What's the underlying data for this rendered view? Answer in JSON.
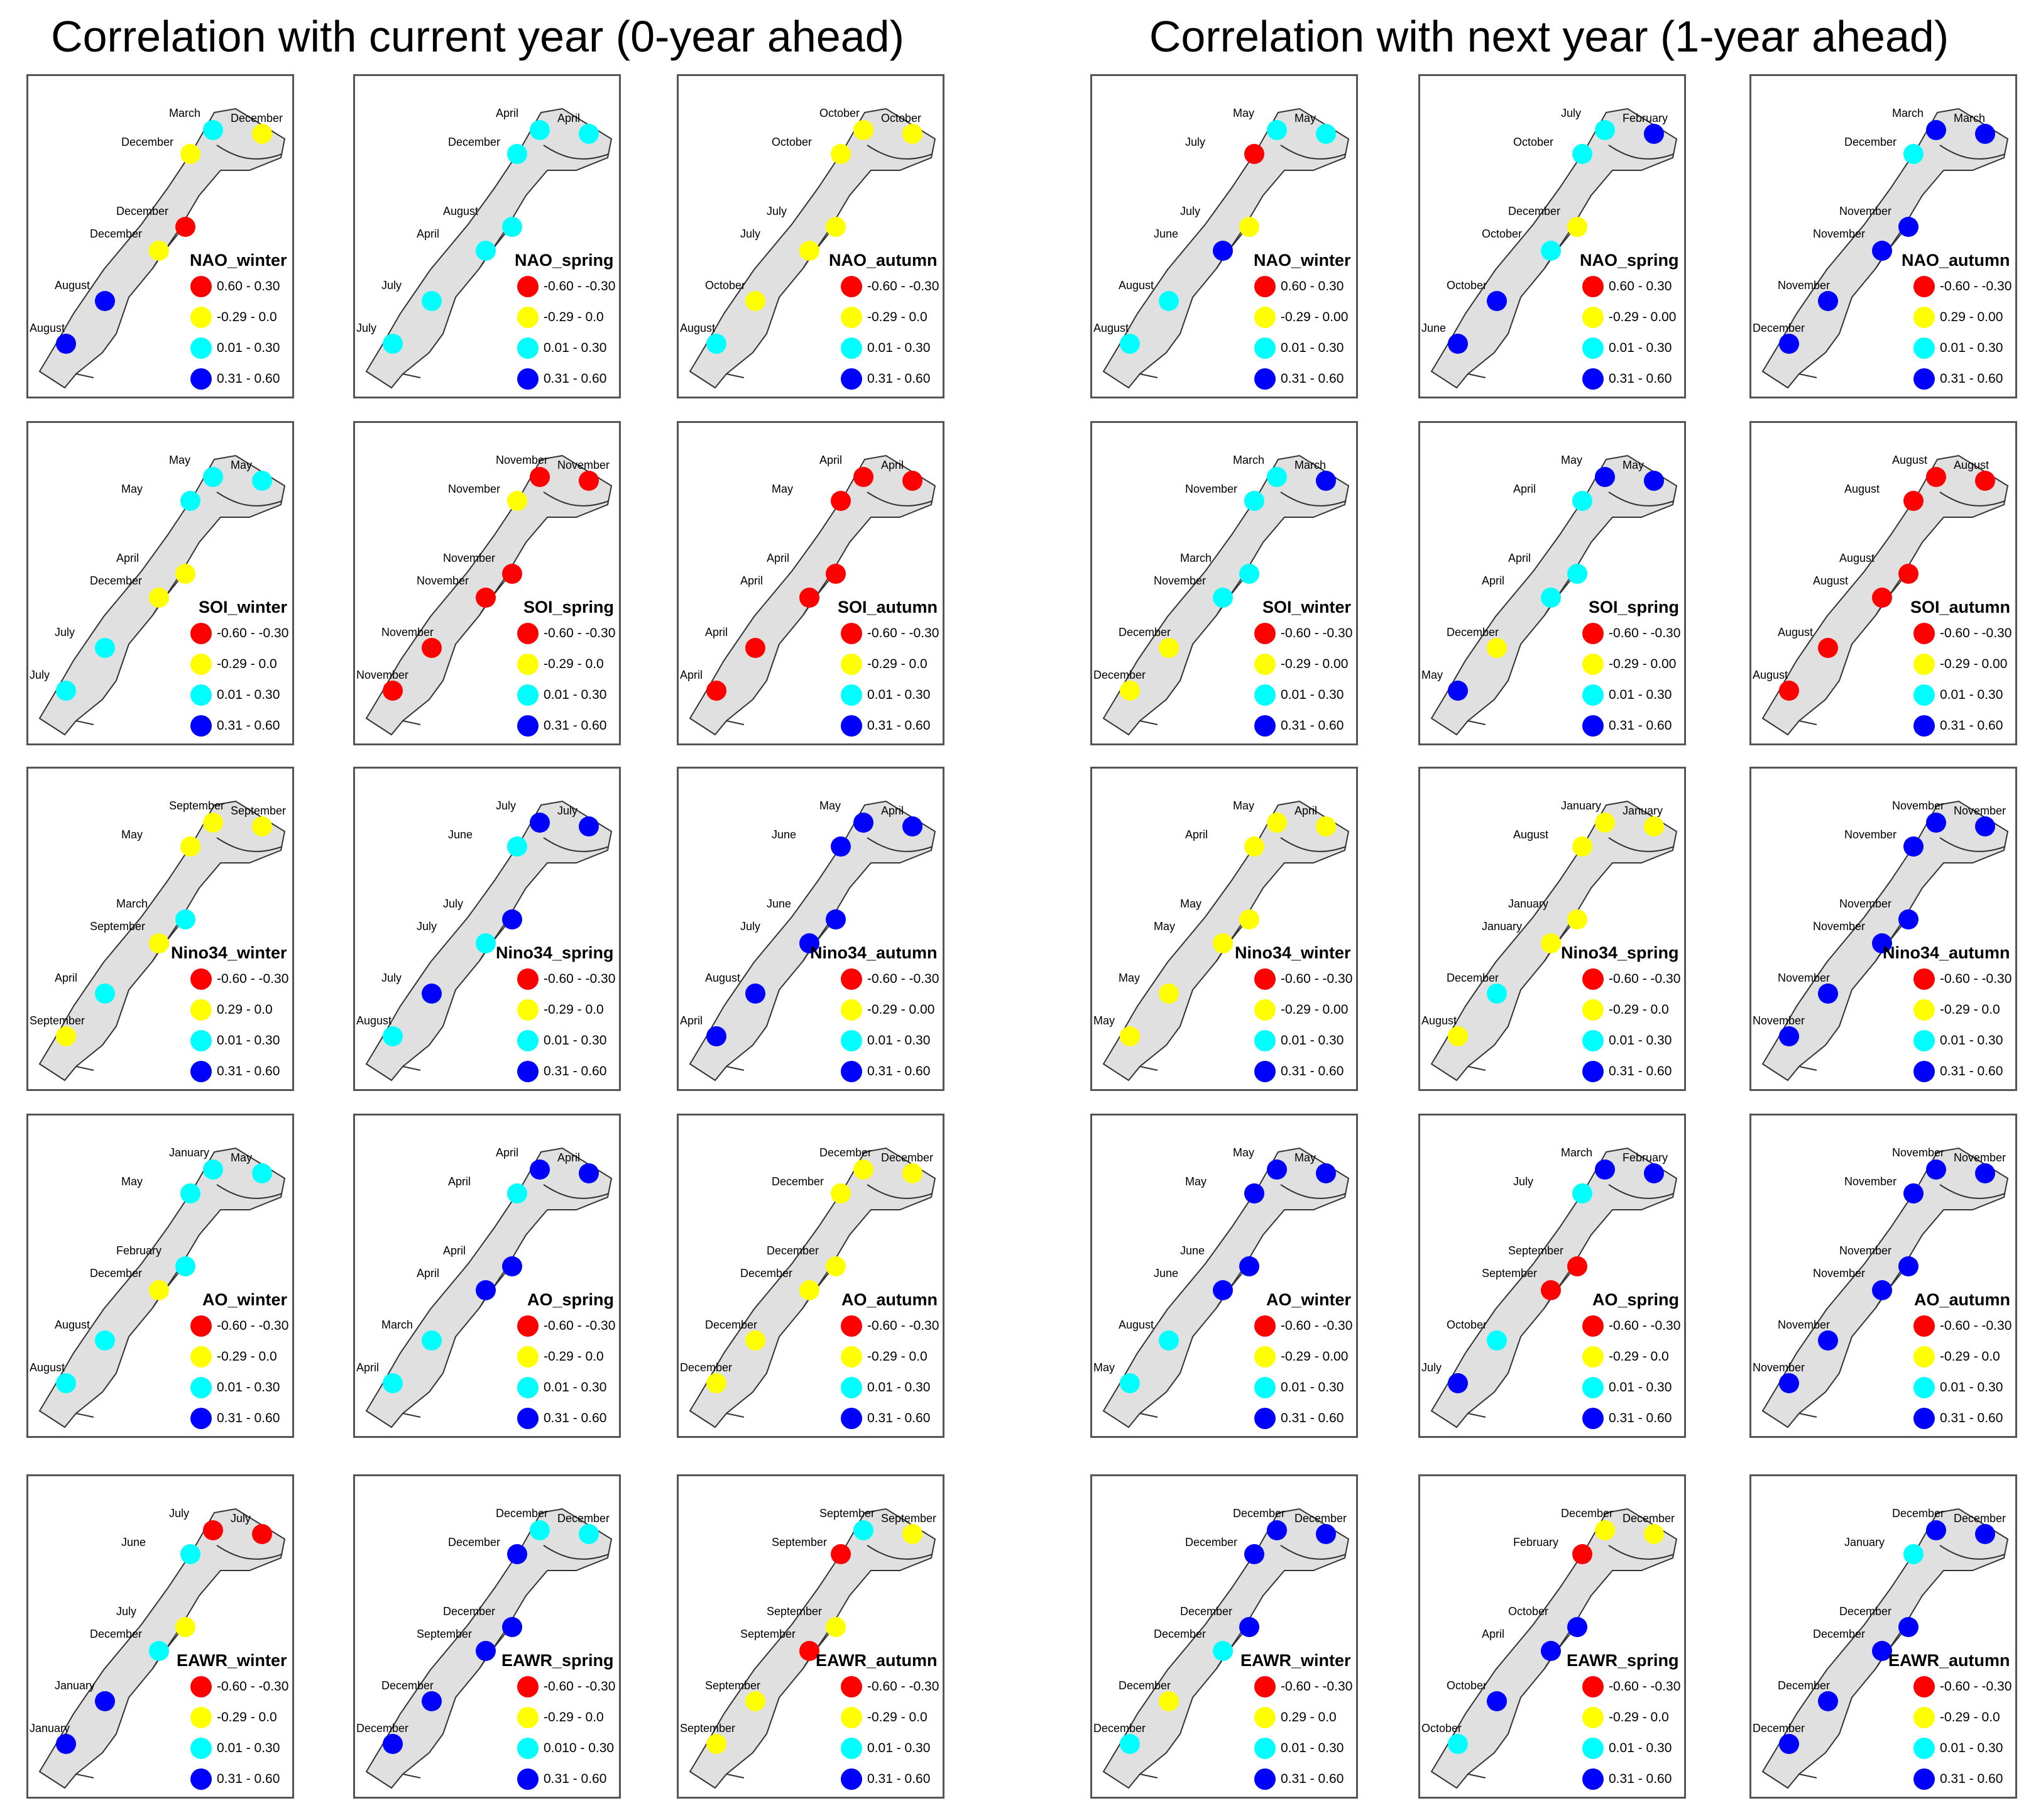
{
  "headings": {
    "left": "Correlation with current year (0-year ahead)",
    "right": "Correlation with next year (1-year ahead)"
  },
  "colors": {
    "red": "#ff0000",
    "yellow": "#ffff00",
    "cyan": "#00ffff",
    "blue": "#0000ff",
    "land": "#e0e0e0",
    "outline": "#333333"
  },
  "legend_default": [
    "-0.60 - -0.30",
    "-0.29 - 0.0",
    "0.01 - 0.30",
    "0.31 - 0.60"
  ],
  "panels": [
    {
      "title": "NAO_winter",
      "legend": [
        "0.60 - 0.30",
        "-0.29 - 0.0",
        "0.01 - 0.30",
        "0.31 - 0.60"
      ],
      "stations": [
        [
          "March",
          "cyan"
        ],
        [
          "December",
          "yellow"
        ],
        [
          "December",
          "yellow"
        ],
        [
          "December",
          "red"
        ],
        [
          "December",
          "yellow"
        ],
        [
          "August",
          "blue"
        ],
        [
          "August",
          "blue"
        ]
      ]
    },
    {
      "title": "NAO_spring",
      "legend": [
        "-0.60 - -0.30",
        "-0.29 - 0.0",
        "0.01 - 0.30",
        "0.31 - 0.60"
      ],
      "stations": [
        [
          "April",
          "cyan"
        ],
        [
          "April",
          "cyan"
        ],
        [
          "December",
          "cyan"
        ],
        [
          "August",
          "cyan"
        ],
        [
          "April",
          "cyan"
        ],
        [
          "July",
          "cyan"
        ],
        [
          "July",
          "cyan"
        ]
      ]
    },
    {
      "title": "NAO_autumn",
      "legend": [
        "-0.60 - -0.30",
        "-0.29 - 0.0",
        "0.01 - 0.30",
        "0.31 - 0.60"
      ],
      "stations": [
        [
          "October",
          "yellow"
        ],
        [
          "October",
          "yellow"
        ],
        [
          "October",
          "yellow"
        ],
        [
          "July",
          "yellow"
        ],
        [
          "July",
          "yellow"
        ],
        [
          "October",
          "yellow"
        ],
        [
          "August",
          "cyan"
        ]
      ]
    },
    {
      "title": "NAO_winter",
      "legend": [
        "0.60 - 0.30",
        "-0.29 - 0.00",
        "0.01 - 0.30",
        "0.31 - 0.60"
      ],
      "stations": [
        [
          "May",
          "cyan"
        ],
        [
          "May",
          "cyan"
        ],
        [
          "July",
          "red"
        ],
        [
          "July",
          "yellow"
        ],
        [
          "June",
          "blue"
        ],
        [
          "August",
          "cyan"
        ],
        [
          "August",
          "cyan"
        ]
      ]
    },
    {
      "title": "NAO_spring",
      "legend": [
        "0.60 - 0.30",
        "-0.29 - 0.00",
        "0.01 - 0.30",
        "0.31 - 0.60"
      ],
      "stations": [
        [
          "July",
          "cyan"
        ],
        [
          "February",
          "blue"
        ],
        [
          "October",
          "cyan"
        ],
        [
          "December",
          "yellow"
        ],
        [
          "October",
          "cyan"
        ],
        [
          "October",
          "blue"
        ],
        [
          "June",
          "blue"
        ]
      ]
    },
    {
      "title": "NAO_autumn",
      "legend": [
        "-0.60 - -0.30",
        "0.29 - 0.00",
        "0.01 - 0.30",
        "0.31 - 0.60"
      ],
      "stations": [
        [
          "March",
          "blue"
        ],
        [
          "March",
          "blue"
        ],
        [
          "December",
          "cyan"
        ],
        [
          "November",
          "blue"
        ],
        [
          "November",
          "blue"
        ],
        [
          "November",
          "blue"
        ],
        [
          "December",
          "blue"
        ]
      ]
    },
    {
      "title": "SOI_winter",
      "legend": [
        "-0.60 - -0.30",
        "-0.29 - 0.0",
        "0.01 - 0.30",
        "0.31 - 0.60"
      ],
      "stations": [
        [
          "May",
          "cyan"
        ],
        [
          "May",
          "cyan"
        ],
        [
          "May",
          "cyan"
        ],
        [
          "April",
          "yellow"
        ],
        [
          "December",
          "yellow"
        ],
        [
          "July",
          "cyan"
        ],
        [
          "July",
          "cyan"
        ]
      ]
    },
    {
      "title": "SOI_spring",
      "legend": [
        "-0.60 - -0.30",
        "-0.29 - 0.0",
        "0.01 - 0.30",
        "0.31 - 0.60"
      ],
      "stations": [
        [
          "November",
          "red"
        ],
        [
          "November",
          "red"
        ],
        [
          "November",
          "yellow"
        ],
        [
          "November",
          "red"
        ],
        [
          "November",
          "red"
        ],
        [
          "November",
          "red"
        ],
        [
          "November",
          "red"
        ]
      ]
    },
    {
      "title": "SOI_autumn",
      "legend": [
        "-0.60 - -0.30",
        "-0.29 - 0.0",
        "0.01 - 0.30",
        "0.31 - 0.60"
      ],
      "stations": [
        [
          "April",
          "red"
        ],
        [
          "April",
          "red"
        ],
        [
          "May",
          "red"
        ],
        [
          "April",
          "red"
        ],
        [
          "April",
          "red"
        ],
        [
          "April",
          "red"
        ],
        [
          "April",
          "red"
        ]
      ]
    },
    {
      "title": "SOI_winter",
      "legend": [
        "-0.60 - -0.30",
        "-0.29 - 0.00",
        "0.01 - 0.30",
        "0.31 - 0.60"
      ],
      "stations": [
        [
          "March",
          "cyan"
        ],
        [
          "March",
          "blue"
        ],
        [
          "November",
          "cyan"
        ],
        [
          "March",
          "cyan"
        ],
        [
          "November",
          "cyan"
        ],
        [
          "December",
          "yellow"
        ],
        [
          "December",
          "yellow"
        ]
      ]
    },
    {
      "title": "SOI_spring",
      "legend": [
        "-0.60 - -0.30",
        "-0.29 - 0.00",
        "0.01 - 0.30",
        "0.31 - 0.60"
      ],
      "stations": [
        [
          "May",
          "blue"
        ],
        [
          "May",
          "blue"
        ],
        [
          "April",
          "cyan"
        ],
        [
          "April",
          "cyan"
        ],
        [
          "April",
          "cyan"
        ],
        [
          "December",
          "yellow"
        ],
        [
          "May",
          "blue"
        ]
      ]
    },
    {
      "title": "SOI_autumn",
      "legend": [
        "-0.60 - -0.30",
        "-0.29 - 0.00",
        "0.01 - 0.30",
        "0.31 - 0.60"
      ],
      "stations": [
        [
          "August",
          "red"
        ],
        [
          "August",
          "red"
        ],
        [
          "August",
          "red"
        ],
        [
          "August",
          "red"
        ],
        [
          "August",
          "red"
        ],
        [
          "August",
          "red"
        ],
        [
          "August",
          "red"
        ]
      ]
    },
    {
      "title": "Nino34_winter",
      "legend": [
        "-0.60 - -0.30",
        "0.29 - 0.0",
        "0.01 - 0.30",
        "0.31 - 0.60"
      ],
      "stations": [
        [
          "September",
          "yellow"
        ],
        [
          "September",
          "yellow"
        ],
        [
          "May",
          "yellow"
        ],
        [
          "March",
          "cyan"
        ],
        [
          "September",
          "yellow"
        ],
        [
          "April",
          "cyan"
        ],
        [
          "September",
          "yellow"
        ]
      ]
    },
    {
      "title": "Nino34_spring",
      "legend": [
        "-0.60 - -0.30",
        "-0.29 - 0.0",
        "0.01 - 0.30",
        "0.31 - 0.60"
      ],
      "stations": [
        [
          "July",
          "blue"
        ],
        [
          "July",
          "blue"
        ],
        [
          "June",
          "cyan"
        ],
        [
          "July",
          "blue"
        ],
        [
          "July",
          "cyan"
        ],
        [
          "July",
          "blue"
        ],
        [
          "August",
          "cyan"
        ]
      ]
    },
    {
      "title": "Nino34_autumn",
      "legend": [
        "-0.60 - -0.30",
        "-0.29 - 0.00",
        "0.01 - 0.30",
        "0.31 - 0.60"
      ],
      "stations": [
        [
          "May",
          "blue"
        ],
        [
          "April",
          "blue"
        ],
        [
          "June",
          "blue"
        ],
        [
          "June",
          "blue"
        ],
        [
          "July",
          "blue"
        ],
        [
          "August",
          "blue"
        ],
        [
          "April",
          "blue"
        ]
      ]
    },
    {
      "title": "Nino34_winter",
      "legend": [
        "-0.60 - -0.30",
        "-0.29 - 0.00",
        "0.01 - 0.30",
        "0.31 - 0.60"
      ],
      "stations": [
        [
          "May",
          "yellow"
        ],
        [
          "April",
          "yellow"
        ],
        [
          "April",
          "yellow"
        ],
        [
          "May",
          "yellow"
        ],
        [
          "May",
          "yellow"
        ],
        [
          "May",
          "yellow"
        ],
        [
          "May",
          "yellow"
        ]
      ]
    },
    {
      "title": "Nino34_spring",
      "legend": [
        "-0.60 - -0.30",
        "-0.29 - 0.0",
        "0.01 - 0.30",
        "0.31 - 0.60"
      ],
      "stations": [
        [
          "January",
          "yellow"
        ],
        [
          "January",
          "yellow"
        ],
        [
          "August",
          "yellow"
        ],
        [
          "January",
          "yellow"
        ],
        [
          "January",
          "yellow"
        ],
        [
          "December",
          "cyan"
        ],
        [
          "August",
          "yellow"
        ]
      ]
    },
    {
      "title": "Nino34_autumn",
      "legend": [
        "-0.60 - -0.30",
        "-0.29 - 0.0",
        "0.01 - 0.30",
        "0.31 - 0.60"
      ],
      "stations": [
        [
          "November",
          "blue"
        ],
        [
          "November",
          "blue"
        ],
        [
          "November",
          "blue"
        ],
        [
          "November",
          "blue"
        ],
        [
          "November",
          "blue"
        ],
        [
          "November",
          "blue"
        ],
        [
          "November",
          "blue"
        ]
      ]
    },
    {
      "title": "AO_winter",
      "legend": [
        "-0.60 - -0.30",
        "-0.29 - 0.0",
        "0.01 - 0.30",
        "0.31 - 0.60"
      ],
      "stations": [
        [
          "January",
          "cyan"
        ],
        [
          "May",
          "cyan"
        ],
        [
          "May",
          "cyan"
        ],
        [
          "February",
          "cyan"
        ],
        [
          "December",
          "yellow"
        ],
        [
          "August",
          "cyan"
        ],
        [
          "August",
          "cyan"
        ]
      ]
    },
    {
      "title": "AO_spring",
      "legend": [
        "-0.60 - -0.30",
        "-0.29 - 0.0",
        "0.01 - 0.30",
        "0.31 - 0.60"
      ],
      "stations": [
        [
          "April",
          "blue"
        ],
        [
          "April",
          "blue"
        ],
        [
          "April",
          "cyan"
        ],
        [
          "April",
          "blue"
        ],
        [
          "April",
          "blue"
        ],
        [
          "March",
          "cyan"
        ],
        [
          "April",
          "cyan"
        ]
      ]
    },
    {
      "title": "AO_autumn",
      "legend": [
        "-0.60 - -0.30",
        "-0.29 - 0.0",
        "0.01 - 0.30",
        "0.31 - 0.60"
      ],
      "stations": [
        [
          "December",
          "yellow"
        ],
        [
          "December",
          "yellow"
        ],
        [
          "December",
          "yellow"
        ],
        [
          "December",
          "yellow"
        ],
        [
          "December",
          "yellow"
        ],
        [
          "December",
          "yellow"
        ],
        [
          "December",
          "yellow"
        ]
      ]
    },
    {
      "title": "AO_winter",
      "legend": [
        "-0.60 - -0.30",
        "-0.29 - 0.00",
        "0.01 - 0.30",
        "0.31 - 0.60"
      ],
      "stations": [
        [
          "May",
          "blue"
        ],
        [
          "May",
          "blue"
        ],
        [
          "May",
          "blue"
        ],
        [
          "June",
          "blue"
        ],
        [
          "June",
          "blue"
        ],
        [
          "August",
          "cyan"
        ],
        [
          "May",
          "cyan"
        ]
      ]
    },
    {
      "title": "AO_spring",
      "legend": [
        "-0.60 - -0.30",
        "-0.29 - 0.0",
        "0.01 - 0.30",
        "0.31 - 0.60"
      ],
      "stations": [
        [
          "March",
          "blue"
        ],
        [
          "February",
          "blue"
        ],
        [
          "July",
          "cyan"
        ],
        [
          "September",
          "red"
        ],
        [
          "September",
          "red"
        ],
        [
          "October",
          "cyan"
        ],
        [
          "July",
          "blue"
        ]
      ]
    },
    {
      "title": "AO_autumn",
      "legend": [
        "-0.60 - -0.30",
        "-0.29 - 0.0",
        "0.01 - 0.30",
        "0.31 - 0.60"
      ],
      "stations": [
        [
          "November",
          "blue"
        ],
        [
          "November",
          "blue"
        ],
        [
          "November",
          "blue"
        ],
        [
          "November",
          "blue"
        ],
        [
          "November",
          "blue"
        ],
        [
          "November",
          "blue"
        ],
        [
          "November",
          "blue"
        ]
      ]
    },
    {
      "title": "EAWR_winter",
      "legend": [
        "-0.60 - -0.30",
        "-0.29 - 0.0",
        "0.01 - 0.30",
        "0.31 - 0.60"
      ],
      "stations": [
        [
          "July",
          "red"
        ],
        [
          "July",
          "red"
        ],
        [
          "June",
          "cyan"
        ],
        [
          "July",
          "yellow"
        ],
        [
          "December",
          "cyan"
        ],
        [
          "January",
          "blue"
        ],
        [
          "January",
          "blue"
        ]
      ]
    },
    {
      "title": "EAWR_spring",
      "legend": [
        "-0.60 - -0.30",
        "-0.29 - 0.0",
        "0.010 - 0.30",
        "0.31 - 0.60"
      ],
      "stations": [
        [
          "December",
          "cyan"
        ],
        [
          "December",
          "cyan"
        ],
        [
          "December",
          "blue"
        ],
        [
          "December",
          "blue"
        ],
        [
          "September",
          "blue"
        ],
        [
          "December",
          "blue"
        ],
        [
          "December",
          "blue"
        ]
      ]
    },
    {
      "title": "EAWR_autumn",
      "legend": [
        "-0.60 - -0.30",
        "-0.29 - 0.0",
        "0.01 - 0.30",
        "0.31 - 0.60"
      ],
      "stations": [
        [
          "September",
          "cyan"
        ],
        [
          "September",
          "yellow"
        ],
        [
          "September",
          "red"
        ],
        [
          "September",
          "yellow"
        ],
        [
          "September",
          "red"
        ],
        [
          "September",
          "yellow"
        ],
        [
          "September",
          "yellow"
        ]
      ]
    },
    {
      "title": "EAWR_winter",
      "legend": [
        "-0.60 - -0.30",
        "0.29 - 0.0",
        "0.01 - 0.30",
        "0.31 - 0.60"
      ],
      "stations": [
        [
          "December",
          "blue"
        ],
        [
          "December",
          "blue"
        ],
        [
          "December",
          "blue"
        ],
        [
          "December",
          "blue"
        ],
        [
          "December",
          "cyan"
        ],
        [
          "December",
          "yellow"
        ],
        [
          "December",
          "cyan"
        ]
      ]
    },
    {
      "title": "EAWR_spring",
      "legend": [
        "-0.60 - -0.30",
        "-0.29 - 0.0",
        "0.01 - 0.30",
        "0.31 - 0.60"
      ],
      "stations": [
        [
          "December",
          "yellow"
        ],
        [
          "December",
          "yellow"
        ],
        [
          "February",
          "red"
        ],
        [
          "October",
          "blue"
        ],
        [
          "April",
          "blue"
        ],
        [
          "October",
          "blue"
        ],
        [
          "October",
          "cyan"
        ]
      ]
    },
    {
      "title": "EAWR_autumn",
      "legend": [
        "-0.60 - -0.30",
        "-0.29 - 0.0",
        "0.01 - 0.30",
        "0.31 - 0.60"
      ],
      "stations": [
        [
          "December",
          "blue"
        ],
        [
          "December",
          "blue"
        ],
        [
          "January",
          "cyan"
        ],
        [
          "December",
          "blue"
        ],
        [
          "December",
          "blue"
        ],
        [
          "December",
          "blue"
        ],
        [
          "December",
          "blue"
        ]
      ]
    }
  ]
}
